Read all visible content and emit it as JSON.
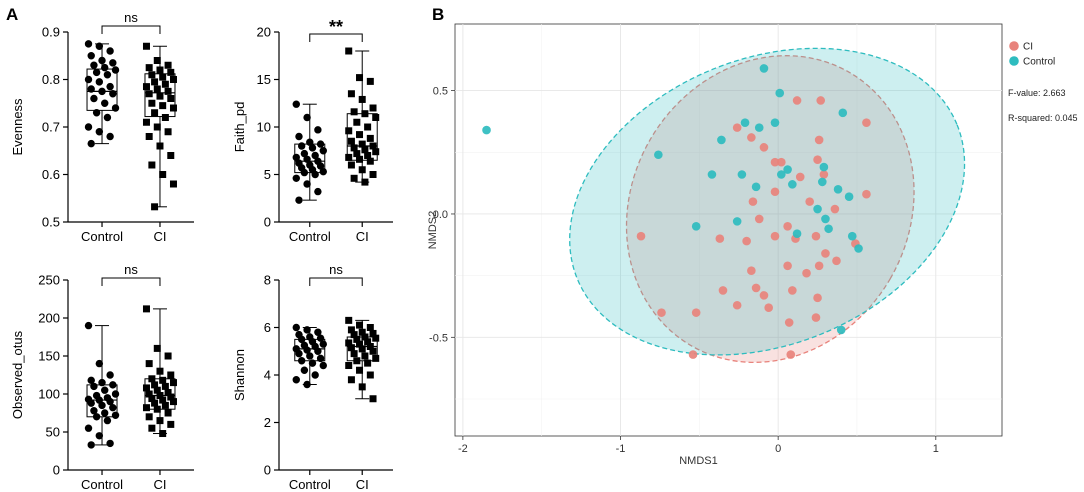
{
  "panels": {
    "a_label": "A",
    "b_label": "B"
  },
  "chart_data": [
    {
      "type": "box",
      "ylabel": "Evenness",
      "categories": [
        "Control",
        "CI"
      ],
      "ylim": [
        0.5,
        0.9
      ],
      "yticks": [
        "0.5",
        "0.6",
        "0.7",
        "0.8",
        "0.9"
      ],
      "yticks_values": [
        0.5,
        0.6,
        0.7,
        0.8,
        0.9
      ],
      "significance": "ns",
      "groups": [
        {
          "name": "Control",
          "marker": "circle",
          "box": [
            0.665,
            0.735,
            0.775,
            0.822,
            0.875
          ],
          "points": [
            0.875,
            0.87,
            0.86,
            0.85,
            0.84,
            0.835,
            0.83,
            0.825,
            0.82,
            0.815,
            0.81,
            0.8,
            0.795,
            0.785,
            0.78,
            0.775,
            0.77,
            0.76,
            0.75,
            0.74,
            0.73,
            0.72,
            0.7,
            0.69,
            0.68,
            0.665
          ]
        },
        {
          "name": "CI",
          "marker": "square",
          "box": [
            0.532,
            0.722,
            0.772,
            0.812,
            0.87
          ],
          "points": [
            0.87,
            0.84,
            0.83,
            0.825,
            0.82,
            0.815,
            0.81,
            0.805,
            0.8,
            0.795,
            0.79,
            0.785,
            0.78,
            0.775,
            0.77,
            0.765,
            0.76,
            0.75,
            0.745,
            0.74,
            0.73,
            0.72,
            0.71,
            0.7,
            0.69,
            0.68,
            0.66,
            0.64,
            0.62,
            0.6,
            0.58,
            0.532
          ]
        }
      ]
    },
    {
      "type": "box",
      "ylabel": "Faith_pd",
      "categories": [
        "Control",
        "CI"
      ],
      "ylim": [
        0,
        20
      ],
      "yticks": [
        "0",
        "5",
        "10",
        "15",
        "20"
      ],
      "yticks_values": [
        0,
        5,
        10,
        15,
        20
      ],
      "significance": "**",
      "groups": [
        {
          "name": "Control",
          "marker": "circle",
          "box": [
            2.3,
            5.2,
            6.4,
            8.2,
            12.4
          ],
          "points": [
            12.4,
            11.0,
            9.7,
            9.0,
            8.4,
            8.2,
            8.0,
            7.8,
            7.5,
            7.2,
            7.0,
            6.8,
            6.6,
            6.4,
            6.2,
            6.0,
            5.9,
            5.7,
            5.5,
            5.3,
            5.2,
            5.0,
            4.6,
            4.0,
            3.2,
            2.3
          ]
        },
        {
          "name": "CI",
          "marker": "square",
          "box": [
            4.2,
            6.5,
            8.0,
            11.4,
            18.0
          ],
          "points": [
            18.0,
            15.2,
            14.8,
            13.5,
            12.9,
            12.0,
            11.6,
            11.4,
            11.0,
            10.5,
            10.0,
            9.6,
            9.2,
            8.8,
            8.5,
            8.2,
            8.0,
            7.8,
            7.6,
            7.4,
            7.2,
            7.0,
            6.8,
            6.6,
            6.4,
            6.0,
            5.5,
            5.0,
            4.6,
            4.2
          ]
        }
      ]
    },
    {
      "type": "box",
      "ylabel": "Observed_otus",
      "categories": [
        "Control",
        "CI"
      ],
      "ylim": [
        0,
        250
      ],
      "yticks": [
        "0",
        "50",
        "100",
        "150",
        "200",
        "250"
      ],
      "yticks_values": [
        0,
        50,
        100,
        150,
        200,
        250
      ],
      "significance": "ns",
      "groups": [
        {
          "name": "Control",
          "marker": "circle",
          "box": [
            33,
            70,
            92,
            112,
            190
          ],
          "points": [
            190,
            140,
            125,
            118,
            115,
            112,
            110,
            105,
            100,
            98,
            95,
            93,
            92,
            90,
            88,
            85,
            82,
            78,
            75,
            72,
            70,
            65,
            55,
            45,
            35,
            33
          ]
        },
        {
          "name": "CI",
          "marker": "square",
          "box": [
            48,
            80,
            98,
            120,
            212
          ],
          "points": [
            212,
            160,
            150,
            140,
            130,
            125,
            120,
            118,
            115,
            112,
            110,
            108,
            105,
            102,
            100,
            98,
            96,
            94,
            92,
            90,
            88,
            85,
            82,
            80,
            75,
            70,
            65,
            60,
            55,
            48
          ]
        }
      ]
    },
    {
      "type": "box",
      "ylabel": "Shannon",
      "categories": [
        "Control",
        "CI"
      ],
      "ylim": [
        0,
        8
      ],
      "yticks": [
        "0",
        "2",
        "4",
        "6",
        "8"
      ],
      "yticks_values": [
        0,
        2,
        4,
        6,
        8
      ],
      "significance": "ns",
      "groups": [
        {
          "name": "Control",
          "marker": "circle",
          "box": [
            3.6,
            4.6,
            5.1,
            5.5,
            6.0
          ],
          "points": [
            6.0,
            5.9,
            5.8,
            5.7,
            5.6,
            5.55,
            5.5,
            5.4,
            5.3,
            5.25,
            5.2,
            5.1,
            5.05,
            5.0,
            4.9,
            4.8,
            4.7,
            4.6,
            4.5,
            4.4,
            4.2,
            4.0,
            3.8,
            3.6
          ]
        },
        {
          "name": "CI",
          "marker": "square",
          "box": [
            3.0,
            4.6,
            5.2,
            5.6,
            6.3
          ],
          "points": [
            6.3,
            6.1,
            6.0,
            5.9,
            5.8,
            5.75,
            5.7,
            5.6,
            5.55,
            5.5,
            5.4,
            5.35,
            5.3,
            5.2,
            5.15,
            5.1,
            5.0,
            4.9,
            4.8,
            4.7,
            4.6,
            4.5,
            4.4,
            4.2,
            4.0,
            3.8,
            3.5,
            3.0
          ]
        }
      ]
    },
    {
      "type": "scatter",
      "title": "",
      "xlabel": "NMDS1",
      "ylabel": "NMDS2",
      "xlim": [
        -2.05,
        1.42
      ],
      "ylim": [
        -0.9,
        0.77
      ],
      "xticks": [
        "-2",
        "-1",
        "0",
        "1"
      ],
      "xticks_values": [
        -2,
        -1,
        0,
        1
      ],
      "yticks": [
        "-0.5",
        "0.0",
        "0.5"
      ],
      "yticks_values": [
        -0.5,
        0.0,
        0.5
      ],
      "grid": true,
      "legend": {
        "position": "top-right",
        "entries": [
          "CI",
          "Control"
        ]
      },
      "stats": {
        "f_value": "F-value: 2.663",
        "r_squared": "R-squared: 0.045"
      },
      "series": [
        {
          "name": "CI",
          "color": "#e8837c",
          "ellipse": {
            "cx": -0.05,
            "cy": 0.02,
            "rx": 0.88,
            "ry": 0.64,
            "angle_deg": 30
          },
          "points": [
            [
              -0.87,
              -0.09
            ],
            [
              -0.74,
              -0.4
            ],
            [
              -0.52,
              -0.4
            ],
            [
              -0.54,
              -0.57
            ],
            [
              0.08,
              -0.57
            ],
            [
              -0.26,
              0.35
            ],
            [
              -0.17,
              0.31
            ],
            [
              -0.09,
              0.27
            ],
            [
              -0.02,
              0.21
            ],
            [
              0.12,
              0.46
            ],
            [
              0.27,
              0.46
            ],
            [
              0.56,
              0.37
            ],
            [
              0.26,
              0.3
            ],
            [
              0.25,
              0.22
            ],
            [
              0.29,
              0.16
            ],
            [
              0.02,
              0.21
            ],
            [
              0.14,
              0.15
            ],
            [
              -0.02,
              0.09
            ],
            [
              -0.16,
              0.05
            ],
            [
              -0.12,
              -0.02
            ],
            [
              0.06,
              -0.05
            ],
            [
              0.2,
              0.05
            ],
            [
              0.36,
              0.02
            ],
            [
              0.56,
              0.08
            ],
            [
              -0.37,
              -0.1
            ],
            [
              -0.2,
              -0.11
            ],
            [
              -0.02,
              -0.09
            ],
            [
              0.11,
              -0.1
            ],
            [
              0.24,
              -0.09
            ],
            [
              0.3,
              -0.16
            ],
            [
              -0.17,
              -0.23
            ],
            [
              0.06,
              -0.21
            ],
            [
              0.18,
              -0.24
            ],
            [
              0.26,
              -0.21
            ],
            [
              0.37,
              -0.19
            ],
            [
              0.49,
              -0.12
            ],
            [
              -0.14,
              -0.3
            ],
            [
              -0.35,
              -0.31
            ],
            [
              0.09,
              -0.31
            ],
            [
              0.25,
              -0.34
            ],
            [
              -0.26,
              -0.37
            ],
            [
              -0.06,
              -0.38
            ],
            [
              -0.09,
              -0.33
            ],
            [
              0.24,
              -0.42
            ],
            [
              0.07,
              -0.44
            ]
          ]
        },
        {
          "name": "Control",
          "color": "#2ebcbf",
          "ellipse": {
            "cx": -0.07,
            "cy": 0.05,
            "rx": 1.3,
            "ry": 0.58,
            "angle_deg": -22
          },
          "points": [
            [
              -1.85,
              0.34
            ],
            [
              -0.76,
              0.24
            ],
            [
              -0.09,
              0.59
            ],
            [
              0.01,
              0.49
            ],
            [
              -0.36,
              0.3
            ],
            [
              -0.21,
              0.37
            ],
            [
              -0.12,
              0.35
            ],
            [
              -0.02,
              0.37
            ],
            [
              0.41,
              0.41
            ],
            [
              -0.42,
              0.16
            ],
            [
              -0.23,
              0.16
            ],
            [
              0.02,
              0.16
            ],
            [
              0.06,
              0.18
            ],
            [
              0.29,
              0.19
            ],
            [
              0.28,
              0.13
            ],
            [
              0.38,
              0.1
            ],
            [
              -0.14,
              0.11
            ],
            [
              0.09,
              0.12
            ],
            [
              0.25,
              0.02
            ],
            [
              0.45,
              0.07
            ],
            [
              0.3,
              -0.02
            ],
            [
              -0.26,
              -0.03
            ],
            [
              -0.52,
              -0.05
            ],
            [
              0.32,
              -0.06
            ],
            [
              0.47,
              -0.09
            ],
            [
              0.51,
              -0.14
            ],
            [
              0.12,
              -0.08
            ],
            [
              0.4,
              -0.47
            ]
          ]
        }
      ]
    }
  ]
}
